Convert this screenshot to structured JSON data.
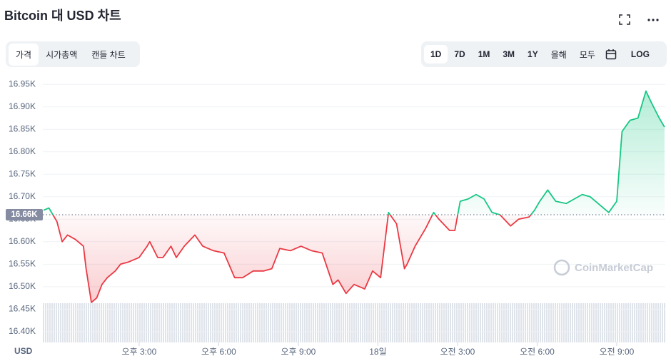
{
  "chart_data": {
    "type": "line",
    "title": "Bitcoin 대 USD 차트",
    "y_label": "USD",
    "x": [
      11.4,
      11.6,
      11.9,
      12.1,
      12.3,
      12.6,
      12.9,
      13.0,
      13.2,
      13.4,
      13.6,
      13.8,
      14.1,
      14.3,
      14.6,
      15.0,
      15.3,
      15.4,
      15.7,
      15.9,
      16.2,
      16.4,
      16.7,
      17.1,
      17.4,
      17.8,
      18.2,
      18.6,
      18.9,
      19.3,
      19.7,
      20.0,
      20.3,
      20.7,
      21.1,
      21.5,
      21.9,
      22.3,
      22.5,
      22.8,
      23.1,
      23.5,
      23.8,
      24.1,
      24.4,
      24.7,
      25.0,
      25.1,
      25.4,
      25.8,
      26.1,
      26.3,
      26.7,
      26.9,
      27.1,
      27.4,
      27.7,
      28.0,
      28.3,
      28.6,
      29.0,
      29.3,
      29.7,
      29.9,
      30.1,
      30.4,
      30.7,
      31.1,
      31.4,
      31.7,
      32.0,
      32.4,
      32.7,
      33.0,
      33.2,
      33.5,
      33.8,
      34.1,
      34.3,
      34.6,
      34.8
    ],
    "values": [
      16.67,
      16.675,
      16.645,
      16.6,
      16.615,
      16.605,
      16.59,
      16.54,
      16.465,
      16.475,
      16.505,
      16.52,
      16.535,
      16.55,
      16.555,
      16.565,
      16.59,
      16.6,
      16.565,
      16.565,
      16.59,
      16.565,
      16.59,
      16.615,
      16.59,
      16.58,
      16.575,
      16.52,
      16.52,
      16.535,
      16.535,
      16.54,
      16.585,
      16.58,
      16.59,
      16.58,
      16.575,
      16.505,
      16.515,
      16.485,
      16.505,
      16.495,
      16.535,
      16.52,
      16.665,
      16.64,
      16.54,
      16.55,
      16.59,
      16.63,
      16.665,
      16.65,
      16.625,
      16.625,
      16.69,
      16.695,
      16.705,
      16.695,
      16.665,
      16.66,
      16.635,
      16.65,
      16.655,
      16.67,
      16.69,
      16.715,
      16.69,
      16.685,
      16.695,
      16.705,
      16.7,
      16.68,
      16.665,
      16.69,
      16.845,
      16.87,
      16.875,
      16.935,
      16.91,
      16.875,
      16.855
    ],
    "color_up": "#16c784",
    "color_down": "#ea3943",
    "reference": {
      "value": 16.66,
      "label": "16.66K"
    },
    "xlim": [
      11.37,
      34.83
    ],
    "xticks": [
      {
        "value": 15,
        "label": "오후 3:00"
      },
      {
        "value": 18,
        "label": "오후 6:00"
      },
      {
        "value": 21,
        "label": "오후 9:00"
      },
      {
        "value": 24,
        "label": "18일"
      },
      {
        "value": 27,
        "label": "오전 3:00"
      },
      {
        "value": 30,
        "label": "오전 6:00"
      },
      {
        "value": 33,
        "label": "오전 9:00"
      }
    ],
    "ylim": [
      16.376,
      16.963
    ],
    "yticks": [
      {
        "value": 16.4,
        "label": "16.40K"
      },
      {
        "value": 16.45,
        "label": "16.45K"
      },
      {
        "value": 16.5,
        "label": "16.50K"
      },
      {
        "value": 16.55,
        "label": "16.55K"
      },
      {
        "value": 16.6,
        "label": "16.60K"
      },
      {
        "value": 16.65,
        "label": "16.65K"
      },
      {
        "value": 16.7,
        "label": "16.70K"
      },
      {
        "value": 16.75,
        "label": "16.75K"
      },
      {
        "value": 16.8,
        "label": "16.80K"
      },
      {
        "value": 16.85,
        "label": "16.85K"
      },
      {
        "value": 16.9,
        "label": "16.90K"
      },
      {
        "value": 16.95,
        "label": "16.95K"
      }
    ],
    "grid": true
  },
  "ui": {
    "tabs": [
      "가격",
      "시가총액",
      "캔들 차트"
    ],
    "ranges": [
      "1D",
      "7D",
      "1M",
      "3M",
      "1Y",
      "올해",
      "모두"
    ],
    "log": "LOG",
    "watermark": "CoinMarketCap"
  }
}
